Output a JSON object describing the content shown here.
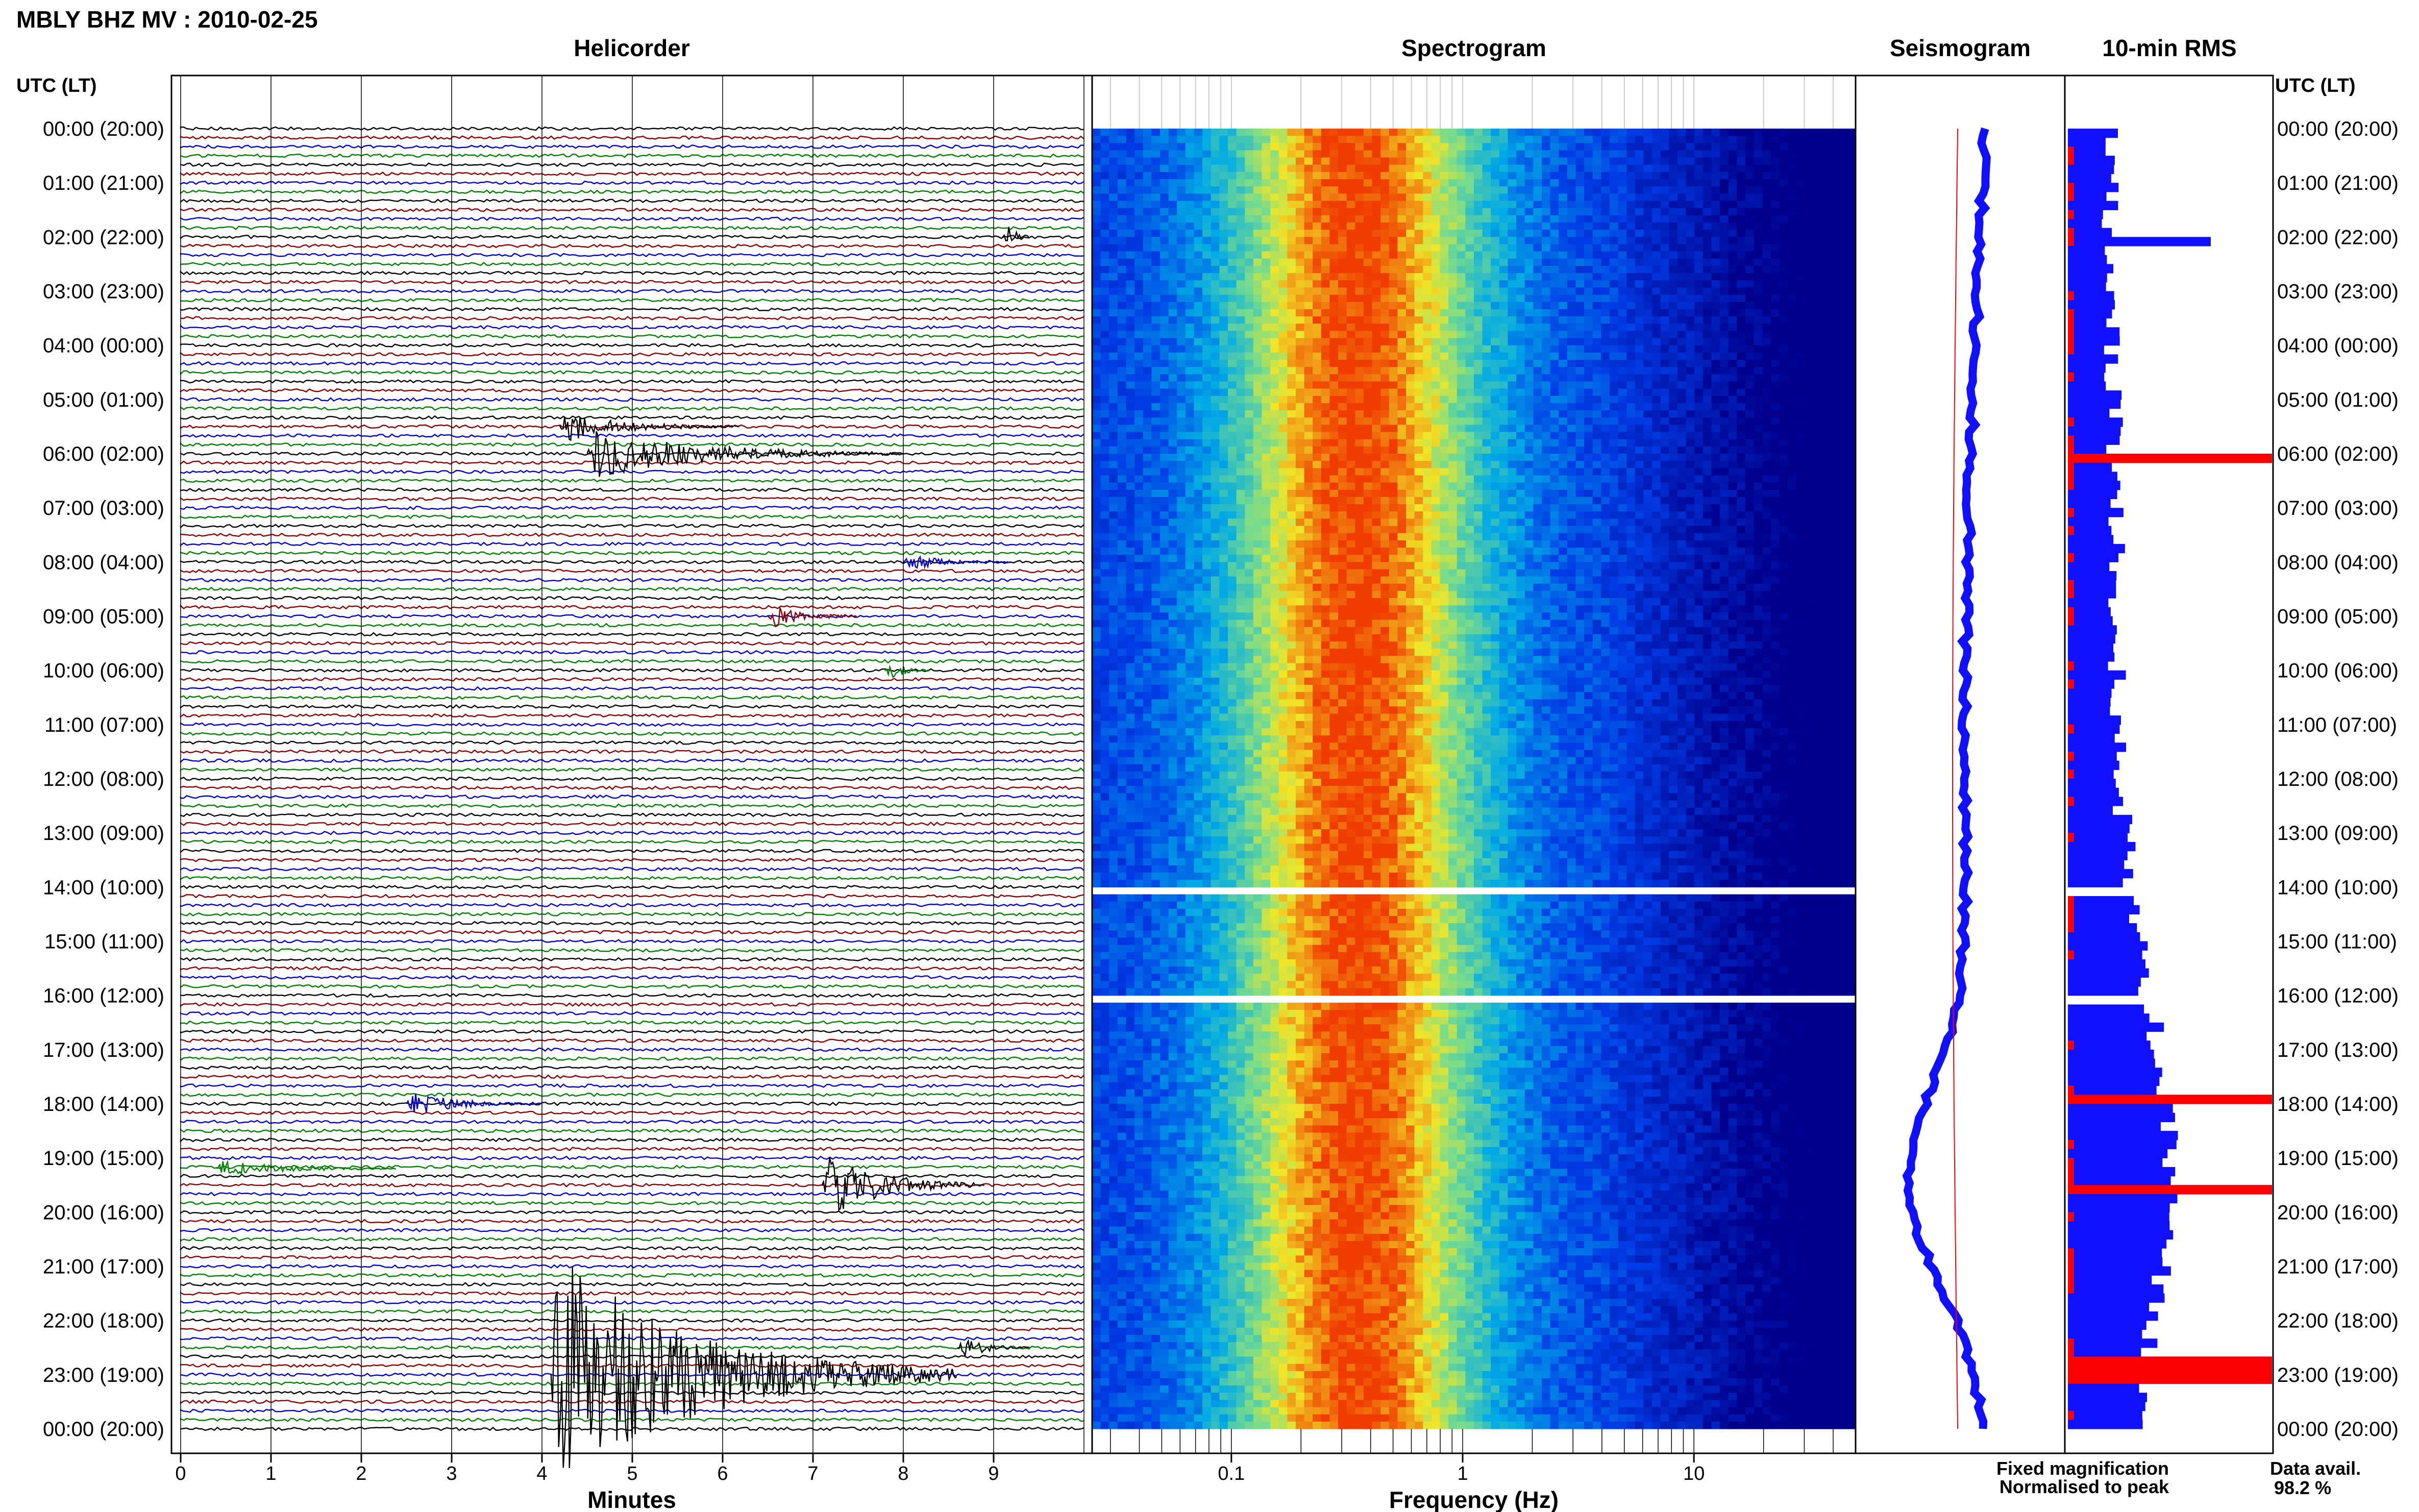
{
  "title": "MBLY BHZ MV : 2010-02-25",
  "time_axis_label": "UTC (LT)",
  "time_labels": [
    "00:00 (20:00)",
    "01:00 (21:00)",
    "02:00 (22:00)",
    "03:00 (23:00)",
    "04:00 (00:00)",
    "05:00 (01:00)",
    "06:00 (02:00)",
    "07:00 (03:00)",
    "08:00 (04:00)",
    "09:00 (05:00)",
    "10:00 (06:00)",
    "11:00 (07:00)",
    "12:00 (08:00)",
    "13:00 (09:00)",
    "14:00 (10:00)",
    "15:00 (11:00)",
    "16:00 (12:00)",
    "17:00 (13:00)",
    "18:00 (14:00)",
    "19:00 (15:00)",
    "20:00 (16:00)",
    "21:00 (17:00)",
    "22:00 (18:00)",
    "23:00 (19:00)",
    "00:00 (20:00)"
  ],
  "panels": {
    "helicorder": {
      "title": "Helicorder",
      "xlabel": "Minutes",
      "ticks": [
        "0",
        "1",
        "2",
        "3",
        "4",
        "5",
        "6",
        "7",
        "8",
        "9"
      ],
      "trace_colors": [
        "#000000",
        "#8b0000",
        "#0000cc",
        "#008000"
      ],
      "events": [
        {
          "minute": 9.1,
          "hour": 2.0,
          "amp": 2.5,
          "dur": 0.3,
          "color": "#000000"
        },
        {
          "minute": 4.2,
          "hour": 5.5,
          "amp": 1.8,
          "dur": 2.0,
          "color": "#000000"
        },
        {
          "minute": 4.5,
          "hour": 6.0,
          "amp": 3.0,
          "dur": 3.5,
          "color": "#000000"
        },
        {
          "minute": 6.5,
          "hour": 9.0,
          "amp": 1.5,
          "dur": 1.0,
          "color": "#8b0000"
        },
        {
          "minute": 7.8,
          "hour": 10.0,
          "amp": 1.5,
          "dur": 0.5,
          "color": "#008000"
        },
        {
          "minute": 8.0,
          "hour": 8.0,
          "amp": 1.0,
          "dur": 1.2,
          "color": "#0000cc"
        },
        {
          "minute": 2.5,
          "hour": 18.0,
          "amp": 1.5,
          "dur": 1.5,
          "color": "#0000cc"
        },
        {
          "minute": 0.4,
          "hour": 19.2,
          "amp": 1.0,
          "dur": 2.0,
          "color": "#008000"
        },
        {
          "minute": 4.1,
          "hour": 23.0,
          "amp": 14.0,
          "dur": 4.5,
          "color": "#000000"
        },
        {
          "minute": 7.1,
          "hour": 19.5,
          "amp": 4.0,
          "dur": 1.8,
          "color": "#000000"
        },
        {
          "minute": 8.6,
          "hour": 22.5,
          "amp": 1.5,
          "dur": 0.8,
          "color": "#000000"
        }
      ]
    },
    "spectrogram": {
      "title": "Spectrogram",
      "xlabel": "Frequency (Hz)",
      "ticks": [
        "0.1",
        "1",
        "10"
      ],
      "tick_values": [
        0.1,
        1,
        10
      ],
      "xlim": [
        0.025,
        50
      ]
    },
    "seismogram": {
      "title": "Seismogram"
    },
    "rms": {
      "title": "10-min RMS"
    }
  },
  "legend": {
    "fixed": "Fixed magnification",
    "normalised": "Normalised to peak",
    "fixed_color": "#1010ff",
    "normalised_color": "#ff0000"
  },
  "availability": {
    "label": "Data avail.",
    "value": "98.2 %"
  },
  "chart_data": [
    {
      "type": "line",
      "title": "Helicorder",
      "xlabel": "Minutes",
      "xlim": [
        0,
        10
      ],
      "ylim_hours_utc": [
        0,
        24
      ],
      "lines_per_hour": 6
    },
    {
      "type": "heatmap",
      "title": "Spectrogram",
      "xlabel": "Frequency (Hz)",
      "x_scale": "log",
      "xlim": [
        0.025,
        50
      ],
      "peak_frequency_hz": 0.35,
      "data_gaps_utc_hours": [
        14.0,
        16.0
      ]
    },
    {
      "type": "line",
      "title": "Seismogram",
      "series": [
        {
          "name": "Fixed magnification",
          "color": "#1010ff"
        },
        {
          "name": "Normalised to peak",
          "color": "#ff0000"
        }
      ]
    },
    {
      "type": "bar",
      "title": "10-min RMS",
      "data_available_percent": 98.2
    }
  ]
}
